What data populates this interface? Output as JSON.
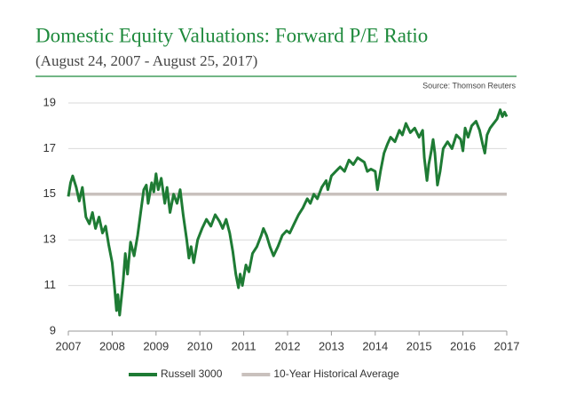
{
  "chart_data": {
    "type": "line",
    "title": "Domestic Equity Valuations: Forward P/E Ratio",
    "subtitle": "(August 24, 2007 - August 25, 2017)",
    "source": "Source: Thomson Reuters",
    "xlim": [
      2007,
      2017
    ],
    "xticks": [
      2007,
      2008,
      2009,
      2010,
      2011,
      2012,
      2013,
      2014,
      2015,
      2016,
      2017
    ],
    "ylim": [
      9,
      19
    ],
    "yticks": [
      9,
      11,
      13,
      15,
      17,
      19
    ],
    "grid": true,
    "series": [
      {
        "name": "Russell 3000",
        "color": "#1e7b34",
        "x": [
          2007.0,
          2007.05,
          2007.1,
          2007.18,
          2007.25,
          2007.32,
          2007.4,
          2007.48,
          2007.55,
          2007.62,
          2007.7,
          2007.78,
          2007.85,
          2007.92,
          2008.0,
          2008.05,
          2008.1,
          2008.13,
          2008.17,
          2008.25,
          2008.3,
          2008.35,
          2008.42,
          2008.5,
          2008.58,
          2008.65,
          2008.72,
          2008.78,
          2008.82,
          2008.9,
          2008.95,
          2009.0,
          2009.05,
          2009.12,
          2009.2,
          2009.25,
          2009.32,
          2009.4,
          2009.48,
          2009.55,
          2009.62,
          2009.7,
          2009.75,
          2009.8,
          2009.86,
          2009.95,
          2010.05,
          2010.15,
          2010.25,
          2010.35,
          2010.45,
          2010.52,
          2010.6,
          2010.68,
          2010.75,
          2010.82,
          2010.88,
          2010.92,
          2010.97,
          2011.05,
          2011.12,
          2011.2,
          2011.3,
          2011.4,
          2011.45,
          2011.52,
          2011.6,
          2011.68,
          2011.78,
          2011.88,
          2011.98,
          2012.05,
          2012.15,
          2012.25,
          2012.35,
          2012.45,
          2012.52,
          2012.6,
          2012.68,
          2012.78,
          2012.88,
          2012.92,
          2013.0,
          2013.1,
          2013.2,
          2013.3,
          2013.4,
          2013.5,
          2013.6,
          2013.75,
          2013.82,
          2013.9,
          2014.0,
          2014.05,
          2014.12,
          2014.2,
          2014.28,
          2014.35,
          2014.45,
          2014.55,
          2014.62,
          2014.7,
          2014.8,
          2014.9,
          2015.0,
          2015.08,
          2015.12,
          2015.18,
          2015.22,
          2015.28,
          2015.32,
          2015.36,
          2015.42,
          2015.48,
          2015.55,
          2015.65,
          2015.75,
          2015.85,
          2015.95,
          2016.0,
          2016.05,
          2016.12,
          2016.2,
          2016.3,
          2016.38,
          2016.45,
          2016.5,
          2016.55,
          2016.62,
          2016.7,
          2016.78,
          2016.85,
          2016.9,
          2016.95,
          2017.0
        ],
        "values": [
          14.9,
          15.5,
          15.8,
          15.3,
          14.7,
          15.3,
          14.0,
          13.7,
          14.2,
          13.5,
          14.0,
          13.3,
          13.6,
          12.8,
          12.0,
          11.0,
          9.9,
          10.6,
          9.7,
          11.2,
          12.4,
          11.5,
          12.9,
          12.3,
          13.2,
          14.2,
          15.2,
          15.4,
          14.6,
          15.5,
          15.1,
          15.9,
          15.2,
          15.7,
          14.6,
          15.3,
          14.2,
          15.0,
          14.6,
          15.2,
          14.1,
          13.0,
          12.2,
          12.7,
          12.0,
          13.0,
          13.5,
          13.9,
          13.6,
          14.1,
          13.8,
          13.5,
          13.9,
          13.3,
          12.5,
          11.5,
          10.9,
          11.5,
          11.0,
          11.9,
          11.6,
          12.4,
          12.7,
          13.2,
          13.5,
          13.2,
          12.7,
          12.3,
          12.7,
          13.2,
          13.4,
          13.3,
          13.7,
          14.1,
          14.4,
          14.8,
          14.6,
          15.0,
          14.8,
          15.3,
          15.6,
          15.2,
          15.8,
          16.0,
          16.2,
          16.0,
          16.5,
          16.3,
          16.6,
          16.4,
          16.0,
          16.1,
          16.0,
          15.2,
          16.0,
          16.8,
          17.2,
          17.5,
          17.3,
          17.8,
          17.6,
          18.1,
          17.7,
          17.9,
          17.5,
          17.8,
          16.6,
          15.6,
          16.3,
          16.9,
          17.4,
          16.8,
          15.4,
          16.0,
          17.0,
          17.3,
          17.0,
          17.6,
          17.4,
          16.9,
          17.9,
          17.5,
          18.0,
          18.2,
          17.8,
          17.2,
          16.8,
          17.6,
          17.9,
          18.1,
          18.3,
          18.7,
          18.4,
          18.6,
          18.4
        ]
      },
      {
        "name": "10-Year Historical Average",
        "color": "#c9c1bd",
        "x": [
          2007,
          2017
        ],
        "values": [
          15,
          15
        ]
      }
    ]
  }
}
